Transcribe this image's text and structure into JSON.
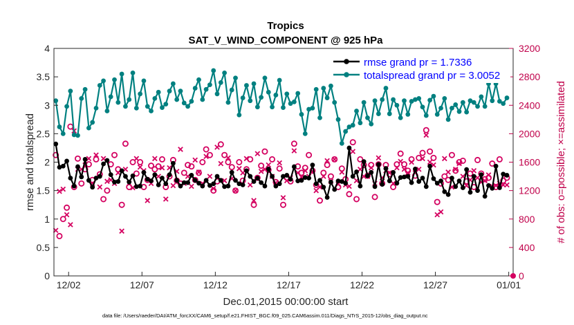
{
  "chart_data": {
    "type": "line",
    "title": "Tropics",
    "subtitle": "SAT_V_WIND_COMPONENT @ 925 hPa",
    "xlabel": "Dec.01,2015 00:00:00 start",
    "ylabel": "rmse and totalspread",
    "y2label": "# of obs: o=possible; ×=assimilated",
    "footnote": "data file: /Users/raeder/DAI/ATM_forcXX/CAM6_setup/f.e21.FHIST_BGC.f09_025.CAM6assim.011/Diags_NTrS_2015-12/obs_diag_output.nc",
    "xlim": [
      1.0,
      32.3
    ],
    "xticks": [
      2,
      7,
      12,
      17,
      22,
      27,
      32
    ],
    "xticklabels": [
      "12/02",
      "12/07",
      "12/12",
      "12/17",
      "12/22",
      "12/27",
      "01/01"
    ],
    "ylim": [
      0,
      4
    ],
    "yticks": [
      "0",
      "0.5",
      "1",
      "1.5",
      "2",
      "2.5",
      "3",
      "3.5",
      "4"
    ],
    "y2lim": [
      0,
      3200
    ],
    "y2ticks": [
      "0",
      "400",
      "800",
      "1200",
      "1600",
      "2000",
      "2400",
      "2800",
      "3200"
    ],
    "colors": {
      "rmse": "#000000",
      "spread": "#008080",
      "obs": "#d40060"
    },
    "legend": [
      {
        "name": "rmse grand pr = 1.7336",
        "series": "rmse"
      },
      {
        "name": "totalspread grand pr = 3.0052",
        "series": "spread"
      }
    ],
    "legend_position": "top-right",
    "series": [
      {
        "name": "rmse",
        "axis": "left",
        "x": [
          1.125,
          1.375,
          1.625,
          1.875,
          2.125,
          2.375,
          2.625,
          2.875,
          3.125,
          3.375,
          3.625,
          3.875,
          4.125,
          4.375,
          4.625,
          4.875,
          5.125,
          5.375,
          5.625,
          5.875,
          6.125,
          6.375,
          6.625,
          6.875,
          7.125,
          7.375,
          7.625,
          7.875,
          8.125,
          8.375,
          8.625,
          8.875,
          9.125,
          9.375,
          9.625,
          9.875,
          10.125,
          10.375,
          10.625,
          10.875,
          11.125,
          11.375,
          11.625,
          11.875,
          12.125,
          12.375,
          12.625,
          12.875,
          13.125,
          13.375,
          13.625,
          13.875,
          14.125,
          14.375,
          14.625,
          14.875,
          15.125,
          15.375,
          15.625,
          15.875,
          16.125,
          16.375,
          16.625,
          16.875,
          17.125,
          17.375,
          17.625,
          17.875,
          18.125,
          18.375,
          18.625,
          18.875,
          19.125,
          19.375,
          19.625,
          19.875,
          20.125,
          20.375,
          20.625,
          20.875,
          21.125,
          21.375,
          21.625,
          21.875,
          22.125,
          22.375,
          22.625,
          22.875,
          23.125,
          23.375,
          23.625,
          23.875,
          24.125,
          24.375,
          24.625,
          24.875,
          25.125,
          25.375,
          25.625,
          25.875,
          26.125,
          26.375,
          26.625,
          26.875,
          27.125,
          27.375,
          27.625,
          27.875,
          28.125,
          28.375,
          28.625,
          28.875,
          29.125,
          29.375,
          29.625,
          29.875,
          30.125,
          30.375,
          30.625,
          30.875,
          31.125,
          31.375,
          31.625,
          31.875
        ],
        "values": [
          2.32,
          1.91,
          1.93,
          2.02,
          1.72,
          1.58,
          1.92,
          1.74,
          2.05,
          1.68,
          1.56,
          1.72,
          1.75,
          1.97,
          2.03,
          1.78,
          1.65,
          1.66,
          1.85,
          1.75,
          1.65,
          1.76,
          1.57,
          1.58,
          1.82,
          1.7,
          1.67,
          1.78,
          1.6,
          1.72,
          1.62,
          1.78,
          1.98,
          1.68,
          1.58,
          1.64,
          1.64,
          1.77,
          1.68,
          1.63,
          1.58,
          1.68,
          1.59,
          1.62,
          1.75,
          1.68,
          1.57,
          1.58,
          1.82,
          1.68,
          1.62,
          1.6,
          1.85,
          1.75,
          1.66,
          1.72,
          1.64,
          1.58,
          1.88,
          1.75,
          1.58,
          1.62,
          1.75,
          1.77,
          1.7,
          1.92,
          1.67,
          1.68,
          1.73,
          1.72,
          1.95,
          1.62,
          1.68,
          1.56,
          1.38,
          1.65,
          1.52,
          1.67,
          1.66,
          1.63,
          2.25,
          1.75,
          1.83,
          1.58,
          2.01,
          1.76,
          1.82,
          1.57,
          1.96,
          1.61,
          1.89,
          1.67,
          1.82,
          1.63,
          1.73,
          1.74,
          1.75,
          1.64,
          1.88,
          1.66,
          1.72,
          1.57,
          1.93,
          1.71,
          1.63,
          1.67,
          1.48,
          1.43,
          1.72,
          1.57,
          1.67,
          1.55,
          1.87,
          1.47,
          1.75,
          1.5,
          1.78,
          1.4,
          1.59,
          1.54,
          1.93,
          1.55,
          1.79,
          1.77
        ]
      },
      {
        "name": "totalspread",
        "axis": "left",
        "x": [
          1.125,
          1.375,
          1.625,
          1.875,
          2.125,
          2.375,
          2.625,
          2.875,
          3.125,
          3.375,
          3.625,
          3.875,
          4.125,
          4.375,
          4.625,
          4.875,
          5.125,
          5.375,
          5.625,
          5.875,
          6.125,
          6.375,
          6.625,
          6.875,
          7.125,
          7.375,
          7.625,
          7.875,
          8.125,
          8.375,
          8.625,
          8.875,
          9.125,
          9.375,
          9.625,
          9.875,
          10.125,
          10.375,
          10.625,
          10.875,
          11.125,
          11.375,
          11.625,
          11.875,
          12.125,
          12.375,
          12.625,
          12.875,
          13.125,
          13.375,
          13.625,
          13.875,
          14.125,
          14.375,
          14.625,
          14.875,
          15.125,
          15.375,
          15.625,
          15.875,
          16.125,
          16.375,
          16.625,
          16.875,
          17.125,
          17.375,
          17.625,
          17.875,
          18.125,
          18.375,
          18.625,
          18.875,
          19.125,
          19.375,
          19.625,
          19.875,
          20.125,
          20.375,
          20.625,
          20.875,
          21.125,
          21.375,
          21.625,
          21.875,
          22.125,
          22.375,
          22.625,
          22.875,
          23.125,
          23.375,
          23.625,
          23.875,
          24.125,
          24.375,
          24.625,
          24.875,
          25.125,
          25.375,
          25.625,
          25.875,
          26.125,
          26.375,
          26.625,
          26.875,
          27.125,
          27.375,
          27.625,
          27.875,
          28.125,
          28.375,
          28.625,
          28.875,
          29.125,
          29.375,
          29.625,
          29.875,
          30.125,
          30.375,
          30.625,
          30.875,
          31.125,
          31.375,
          31.625,
          31.875
        ],
        "values": [
          3.08,
          2.62,
          2.5,
          2.98,
          3.25,
          2.48,
          2.47,
          3.12,
          3.28,
          2.6,
          2.7,
          2.95,
          3.35,
          3.43,
          2.9,
          3.15,
          3.45,
          3.05,
          3.55,
          2.98,
          3.1,
          3.57,
          2.95,
          3.2,
          3.43,
          2.98,
          2.9,
          3.12,
          3.23,
          2.96,
          3.02,
          3.25,
          3.38,
          3.1,
          3.25,
          3.04,
          2.98,
          3.07,
          3.3,
          3.45,
          3.1,
          3.28,
          3.36,
          3.61,
          3.2,
          3.4,
          3.57,
          3.05,
          3.27,
          3.48,
          2.83,
          3.13,
          3.35,
          3.08,
          3.38,
          2.97,
          3.14,
          3.48,
          3.23,
          2.97,
          3.18,
          3.44,
          2.96,
          3.2,
          3.03,
          3.06,
          3.21,
          2.84,
          2.5,
          2.93,
          2.95,
          3.28,
          2.78,
          3.3,
          3.13,
          3.34,
          3.05,
          2.75,
          2.33,
          2.54,
          2.62,
          2.65,
          2.9,
          2.69,
          3.05,
          2.78,
          2.67,
          3.08,
          2.85,
          3.1,
          3.3,
          2.85,
          3.1,
          3.0,
          2.78,
          3.08,
          2.84,
          3.07,
          3.1,
          3.12,
          2.97,
          2.82,
          3.09,
          3.16,
          2.84,
          2.95,
          3.12,
          2.75,
          2.95,
          3.01,
          2.89,
          3.05,
          2.88,
          3.08,
          3.05,
          2.98,
          3.15,
          2.98,
          3.38,
          3.08,
          3.38,
          3.07,
          3.03,
          3.13
        ]
      },
      {
        "name": "obs possible (o)",
        "axis": "right",
        "x": [
          1.125,
          1.375,
          1.625,
          1.875,
          2.125,
          2.375,
          2.625,
          2.875,
          3.125,
          3.375,
          3.625,
          3.875,
          4.125,
          4.375,
          4.625,
          4.875,
          5.125,
          5.375,
          5.625,
          5.875,
          6.125,
          6.375,
          6.625,
          6.875,
          7.125,
          7.375,
          7.625,
          7.875,
          8.125,
          8.375,
          8.625,
          8.875,
          9.125,
          9.375,
          9.625,
          9.875,
          10.125,
          10.375,
          10.625,
          10.875,
          11.125,
          11.375,
          11.625,
          11.875,
          12.125,
          12.375,
          12.625,
          12.875,
          13.125,
          13.375,
          13.625,
          13.875,
          14.125,
          14.375,
          14.625,
          14.875,
          15.125,
          15.375,
          15.625,
          15.875,
          16.125,
          16.375,
          16.625,
          16.875,
          17.125,
          17.375,
          17.625,
          17.875,
          18.125,
          18.375,
          18.625,
          18.875,
          19.125,
          19.375,
          19.625,
          19.875,
          20.125,
          20.375,
          20.625,
          20.875,
          21.125,
          21.375,
          21.625,
          21.875,
          22.125,
          22.375,
          22.625,
          22.875,
          23.125,
          23.375,
          23.625,
          23.875,
          24.125,
          24.375,
          24.625,
          24.875,
          25.125,
          25.375,
          25.625,
          25.875,
          26.125,
          26.375,
          26.625,
          26.875,
          27.125,
          27.375,
          27.625,
          27.875,
          28.125,
          28.375,
          28.625,
          28.875,
          29.125,
          29.375,
          29.625,
          29.875,
          30.125,
          30.375,
          30.625,
          30.875,
          31.125,
          31.375,
          31.625,
          31.875
        ],
        "values": [
          1700,
          560,
          800,
          960,
          2100,
          1250,
          1650,
          1300,
          1500,
          1570,
          1350,
          1640,
          1430,
          1080,
          1200,
          1570,
          1700,
          1500,
          1000,
          1860,
          1250,
          1600,
          1440,
          1600,
          1250,
          1350,
          1550,
          1500,
          1540,
          1640,
          1250,
          1400,
          1630,
          1340,
          1300,
          1450,
          1560,
          1540,
          1350,
          1450,
          1600,
          1780,
          1700,
          1200,
          1330,
          1850,
          1700,
          1600,
          1530,
          1200,
          1600,
          1340,
          1500,
          1640,
          1000,
          1380,
          1550,
          1750,
          1490,
          1640,
          1320,
          1510,
          1000,
          1380,
          1330,
          1860,
          1540,
          1450,
          1520,
          1700,
          1480,
          1280,
          1060,
          1450,
          1560,
          1400,
          1640,
          1250,
          1510,
          1360,
          1150,
          1880,
          1080,
          1640,
          1560,
          1410,
          1560,
          1110,
          1570,
          1300,
          1560,
          1430,
          1250,
          1570,
          1720,
          1570,
          1480,
          1640,
          1410,
          1660,
          1730,
          2050,
          1750,
          1660,
          1040,
          1300,
          1400,
          1350,
          1700,
          1480,
          1600,
          1620,
          1330,
          1440,
          1250,
          1630,
          1440,
          1360,
          1380,
          1580,
          1250,
          1640,
          1340,
          1380
        ]
      },
      {
        "name": "obs assimilated (×)",
        "axis": "right",
        "x": [
          1.125,
          1.375,
          1.625,
          1.875,
          2.125,
          2.375,
          2.625,
          2.875,
          3.125,
          3.375,
          3.625,
          3.875,
          4.125,
          4.375,
          4.625,
          4.875,
          5.125,
          5.375,
          5.625,
          5.875,
          6.125,
          6.375,
          6.625,
          6.875,
          7.125,
          7.375,
          7.625,
          7.875,
          8.125,
          8.375,
          8.625,
          8.875,
          9.125,
          9.375,
          9.625,
          9.875,
          10.125,
          10.375,
          10.625,
          10.875,
          11.125,
          11.375,
          11.625,
          11.875,
          12.125,
          12.375,
          12.625,
          12.875,
          13.125,
          13.375,
          13.625,
          13.875,
          14.125,
          14.375,
          14.625,
          14.875,
          15.125,
          15.375,
          15.625,
          15.875,
          16.125,
          16.375,
          16.625,
          16.875,
          17.125,
          17.375,
          17.625,
          17.875,
          18.125,
          18.375,
          18.625,
          18.875,
          19.125,
          19.375,
          19.625,
          19.875,
          20.125,
          20.375,
          20.625,
          20.875,
          21.125,
          21.375,
          21.625,
          21.875,
          22.125,
          22.375,
          22.625,
          22.875,
          23.125,
          23.375,
          23.625,
          23.875,
          24.125,
          24.375,
          24.625,
          24.875,
          25.125,
          25.375,
          25.625,
          25.875,
          26.125,
          26.375,
          26.625,
          26.875,
          27.125,
          27.375,
          27.625,
          27.875,
          28.125,
          28.375,
          28.625,
          28.875,
          29.125,
          29.375,
          29.625,
          29.875,
          30.125,
          30.375,
          30.625,
          30.875,
          31.125,
          31.375,
          31.625,
          31.875
        ],
        "values": [
          640,
          1190,
          1220,
          860,
          720,
          2040,
          1500,
          1500,
          1560,
          1650,
          1300,
          1700,
          1250,
          1650,
          1330,
          1350,
          1300,
          1450,
          630,
          1500,
          1300,
          1240,
          1650,
          1530,
          1480,
          1060,
          1300,
          1650,
          1400,
          1520,
          1080,
          1520,
          1270,
          1470,
          1780,
          1300,
          1400,
          1260,
          1630,
          1460,
          1300,
          1680,
          1400,
          1230,
          1810,
          1580,
          1340,
          1660,
          1370,
          1200,
          1510,
          1450,
          1650,
          1280,
          1060,
          1720,
          1470,
          1500,
          1560,
          1400,
          1310,
          1590,
          1100,
          1340,
          1380,
          1760,
          1450,
          1390,
          1480,
          1400,
          1470,
          1200,
          1250,
          1400,
          1620,
          1330,
          1640,
          1290,
          1460,
          1280,
          1260,
          1750,
          1340,
          1500,
          1400,
          1400,
          1520,
          1300,
          1660,
          1380,
          1480,
          1450,
          1300,
          1520,
          1610,
          1500,
          1450,
          1600,
          1450,
          1500,
          1650,
          1980,
          1600,
          1560,
          860,
          900,
          1650,
          1460,
          1250,
          1500,
          1580,
          1400,
          1270,
          1350,
          1480,
          1380,
          1320,
          1340,
          1420,
          1260,
          1270,
          1300,
          1280,
          1280
        ]
      }
    ]
  }
}
